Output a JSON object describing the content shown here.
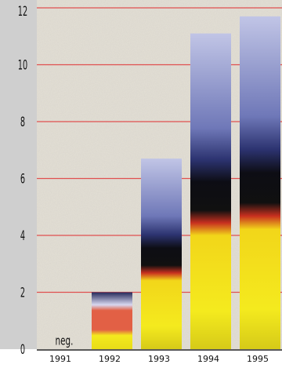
{
  "chart_data": {
    "type": "bar",
    "categories": [
      "1991",
      "1992",
      "1993",
      "1994",
      "1995"
    ],
    "values": [
      0,
      2,
      6.7,
      11.1,
      11.7
    ],
    "value_labels": [
      "neg.",
      "",
      "",
      "",
      ""
    ],
    "ylim": [
      0,
      12
    ],
    "yticks": [
      "0",
      "2",
      "4",
      "6",
      "8",
      "10",
      "12"
    ],
    "title": "",
    "xlabel": "",
    "ylabel": "",
    "grid": "horizontal",
    "colors": {
      "plot_background": "#e4e0d6",
      "axis_strip": "#cfcfcf",
      "grid_line": "#e05050",
      "bar_top": "#b3b8dc",
      "bar_mid_blue": "#46528f",
      "bar_dark": "#0d0d14",
      "bar_red": "#d23a2a",
      "bar_yellow": "#f4ea1e",
      "bar_1992_top": "#e26045"
    }
  }
}
